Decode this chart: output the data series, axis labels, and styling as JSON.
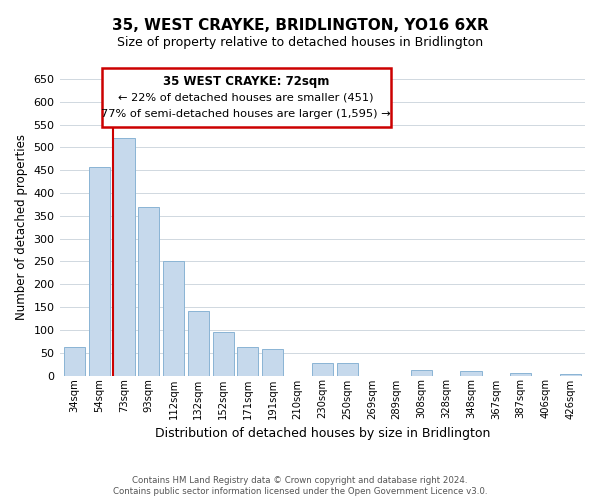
{
  "title": "35, WEST CRAYKE, BRIDLINGTON, YO16 6XR",
  "subtitle": "Size of property relative to detached houses in Bridlington",
  "xlabel": "Distribution of detached houses by size in Bridlington",
  "ylabel": "Number of detached properties",
  "footer_line1": "Contains HM Land Registry data © Crown copyright and database right 2024.",
  "footer_line2": "Contains public sector information licensed under the Open Government Licence v3.0.",
  "categories": [
    "34sqm",
    "54sqm",
    "73sqm",
    "93sqm",
    "112sqm",
    "132sqm",
    "152sqm",
    "171sqm",
    "191sqm",
    "210sqm",
    "230sqm",
    "250sqm",
    "269sqm",
    "289sqm",
    "308sqm",
    "328sqm",
    "348sqm",
    "367sqm",
    "387sqm",
    "406sqm",
    "426sqm"
  ],
  "values": [
    62,
    458,
    521,
    370,
    250,
    142,
    95,
    62,
    58,
    0,
    28,
    28,
    0,
    0,
    12,
    0,
    10,
    0,
    5,
    0,
    3
  ],
  "bar_color": "#c6d9ec",
  "bar_edge_color": "#8ab4d4",
  "highlight_bar_index": 2,
  "highlight_line_color": "#cc0000",
  "ylim": [
    0,
    650
  ],
  "yticks": [
    0,
    50,
    100,
    150,
    200,
    250,
    300,
    350,
    400,
    450,
    500,
    550,
    600,
    650
  ],
  "annotation_title": "35 WEST CRAYKE: 72sqm",
  "annotation_line1": "← 22% of detached houses are smaller (451)",
  "annotation_line2": "77% of semi-detached houses are larger (1,595) →",
  "annotation_edge_color": "#cc0000",
  "background_color": "#ffffff",
  "grid_color": "#d0d8e0",
  "title_fontsize": 11,
  "subtitle_fontsize": 9
}
